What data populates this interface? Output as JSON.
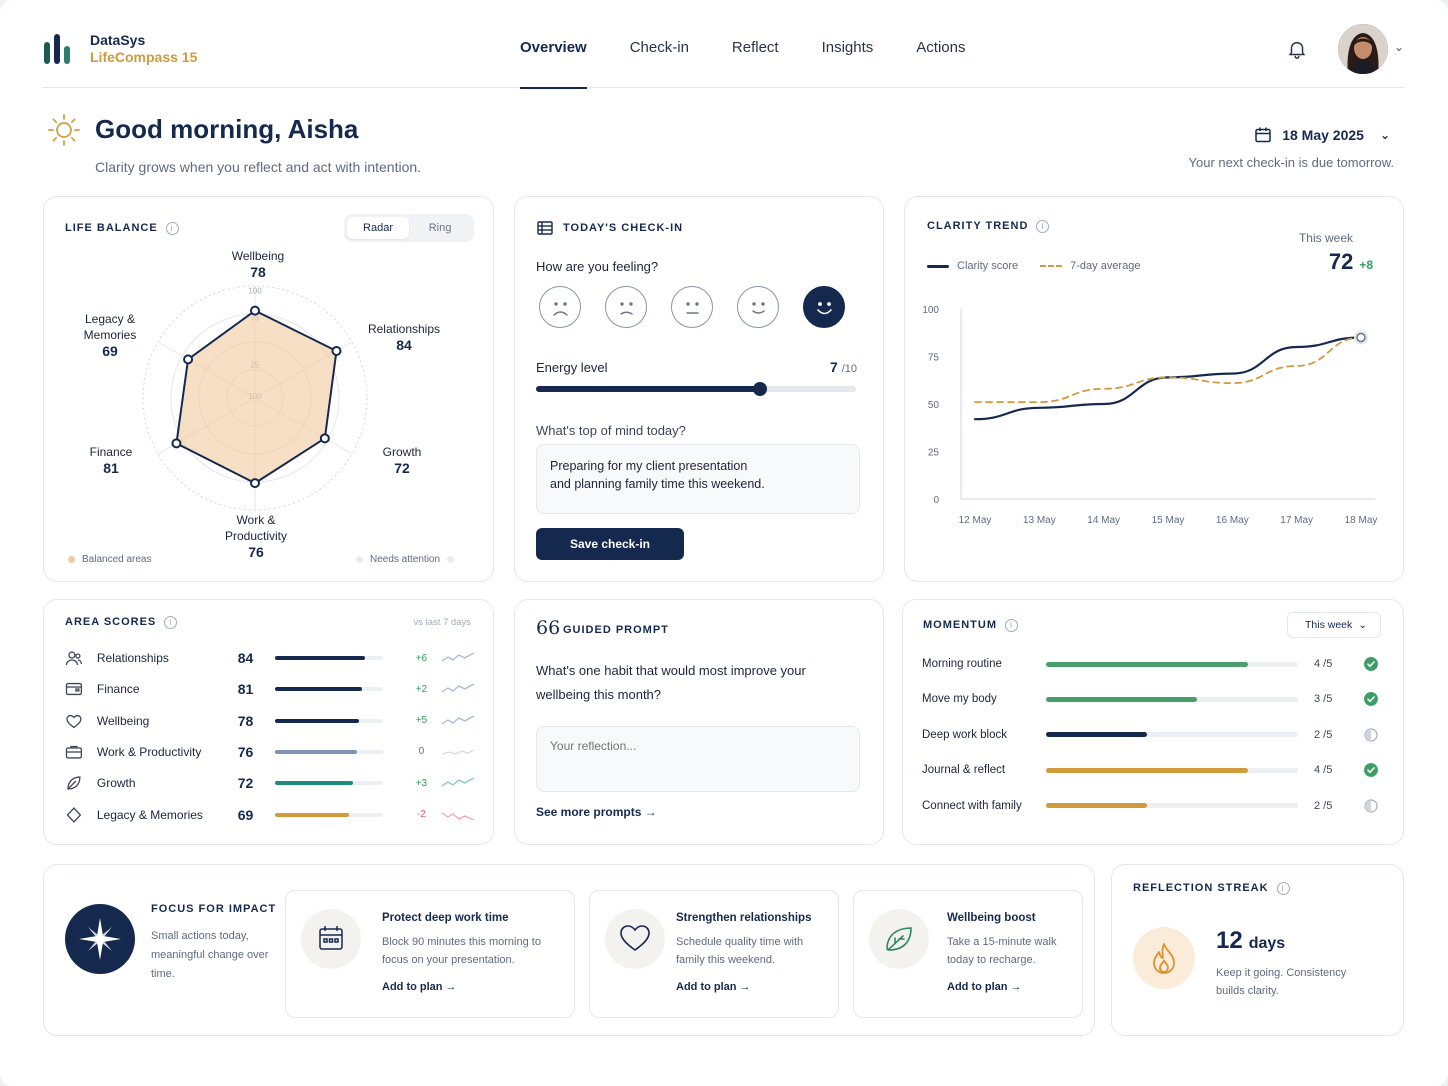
{
  "brand": {
    "name": "DataSys",
    "product": "LifeCompass 15",
    "colors": [
      "#1e5b4e",
      "#15294f",
      "#2f7d6b"
    ]
  },
  "nav": [
    "Overview",
    "Check-in",
    "Reflect",
    "Insights",
    "Actions"
  ],
  "nav_active": "Overview",
  "header_icons": [
    "bell-icon",
    "avatar",
    "chevron-down-icon"
  ],
  "greeting": {
    "title": "Good morning, Aisha",
    "subtitle": "Clarity grows when you reflect and act with intention.",
    "date": "18 May 2025",
    "next_checkin": "Your next check-in is due tomorrow."
  },
  "life_balance": {
    "title": "LIFE BALANCE",
    "toggle": [
      "Radar",
      "Ring"
    ],
    "toggle_selected": "Radar",
    "scale_ticks": [
      "100",
      "75",
      "25",
      "100"
    ],
    "axes": [
      {
        "name": "Wellbeing",
        "value": 78
      },
      {
        "name": "Relationships",
        "value": 84
      },
      {
        "name": "Growth",
        "value": 72
      },
      {
        "name": "Work & Productivity",
        "value": 76
      },
      {
        "name": "Finance",
        "value": 81
      },
      {
        "name": "Legacy & Memories",
        "value": 69
      }
    ],
    "label_text": {
      "wellbeing": "Wellbeing",
      "relationships": "Relationships",
      "growth": "Growth",
      "work_1": "Work &",
      "work_2": "Productivity",
      "finance": "Finance",
      "legacy_1": "Legacy &",
      "legacy_2": "Memories"
    },
    "legend": {
      "balanced": "Balanced areas",
      "attention": "Needs attention"
    }
  },
  "checkin": {
    "title": "TODAY'S CHECK-IN",
    "feeling_label": "How are you feeling?",
    "moods": [
      "very-sad",
      "sad",
      "neutral",
      "content",
      "happy"
    ],
    "mood_selected": "happy",
    "energy_label": "Energy level",
    "energy_value": "7",
    "energy_max": "/10",
    "energy_fraction": 0.7,
    "mind_label": "What's top of mind today?",
    "mind_text": "Preparing for my client presentation\nand planning family time this weekend.",
    "save_label": "Save check-in"
  },
  "clarity": {
    "title": "CLARITY TREND",
    "legend_score": "Clarity score",
    "legend_avg": "7-day average",
    "week_label": "This week",
    "week_value": "72",
    "week_delta": "+8",
    "y_ticks": [
      "100",
      "75",
      "50",
      "25",
      "0"
    ],
    "x_ticks": [
      "12 May",
      "13 May",
      "14 May",
      "15 May",
      "16 May",
      "17 May",
      "18 May"
    ]
  },
  "chart_data": {
    "type": "line",
    "title": "CLARITY TREND",
    "xlabel": "",
    "ylabel": "",
    "ylim": [
      0,
      100
    ],
    "grid": false,
    "legend": "top-left",
    "x": [
      "12 May",
      "13 May",
      "14 May",
      "15 May",
      "16 May",
      "17 May",
      "18 May"
    ],
    "series": [
      {
        "name": "Clarity score",
        "color": "#15294f",
        "style": "solid",
        "values": [
          42,
          48,
          50,
          64,
          66,
          80,
          85
        ]
      },
      {
        "name": "7-day average",
        "color": "#d09a3d",
        "style": "dashed",
        "values": [
          51,
          51,
          58,
          64,
          61,
          70,
          85
        ]
      }
    ]
  },
  "area_scores": {
    "title": "AREA SCORES",
    "compare": "vs last 7 days",
    "rows": [
      {
        "icon": "people-icon",
        "name": "Relationships",
        "score": "84",
        "pct": 84,
        "delta": "+6",
        "color": "#15294f",
        "trend": "up"
      },
      {
        "icon": "wallet-icon",
        "name": "Finance",
        "score": "81",
        "pct": 81,
        "delta": "+2",
        "color": "#15294f",
        "trend": "up"
      },
      {
        "icon": "heart-icon",
        "name": "Wellbeing",
        "score": "78",
        "pct": 78,
        "delta": "+5",
        "color": "#15294f",
        "trend": "up"
      },
      {
        "icon": "briefcase-icon",
        "name": "Work & Productivity",
        "score": "76",
        "pct": 76,
        "delta": "0",
        "color": "#7f93b6",
        "trend": "flat"
      },
      {
        "icon": "leaf-icon",
        "name": "Growth",
        "score": "72",
        "pct": 72,
        "delta": "+3",
        "color": "#1f8a82",
        "trend": "up"
      },
      {
        "icon": "diamond-icon",
        "name": "Legacy & Memories",
        "score": "69",
        "pct": 69,
        "delta": "-2",
        "color": "#d09a3d",
        "trend": "down"
      }
    ]
  },
  "guided_prompt": {
    "title": "GUIDED PROMPT",
    "icon": "66",
    "question": "What's one habit that would most improve your wellbeing this month?",
    "placeholder": "Your reflection...",
    "link": "See more prompts →"
  },
  "momentum": {
    "title": "MOMENTUM",
    "period": "This week",
    "rows": [
      {
        "name": "Morning routine",
        "done": 4,
        "total": 5,
        "label": "4 /5",
        "color": "#4a9e6b",
        "status": "complete"
      },
      {
        "name": "Move my body",
        "done": 3,
        "total": 5,
        "label": "3 /5",
        "color": "#4a9e6b",
        "status": "complete"
      },
      {
        "name": "Deep work block",
        "done": 2,
        "total": 5,
        "label": "2 /5",
        "color": "#15294f",
        "status": "partial"
      },
      {
        "name": "Journal & reflect",
        "done": 4,
        "total": 5,
        "label": "4 /5",
        "color": "#d09a3d",
        "status": "complete"
      },
      {
        "name": "Connect with family",
        "done": 2,
        "total": 5,
        "label": "2 /5",
        "color": "#d09a3d",
        "status": "partial"
      }
    ]
  },
  "focus": {
    "title": "FOCUS FOR IMPACT",
    "subtitle": "Small actions today, meaningful change over time.",
    "actions": [
      {
        "icon": "calendar-icon",
        "title": "Protect deep work time",
        "desc": "Block 90 minutes this morning to focus on your presentation.",
        "link": "Add to plan →"
      },
      {
        "icon": "heart-icon",
        "title": "Strengthen relationships",
        "desc": "Schedule quality time with family this weekend.",
        "link": "Add to plan →"
      },
      {
        "icon": "leaf-icon",
        "title": "Wellbeing boost",
        "desc": "Take a 15-minute walk today to recharge.",
        "link": "Add to plan →"
      }
    ]
  },
  "streak": {
    "title": "REFLECTION STREAK",
    "count": "12",
    "unit": "days",
    "subtitle": "Keep it going. Consistency builds clarity."
  }
}
